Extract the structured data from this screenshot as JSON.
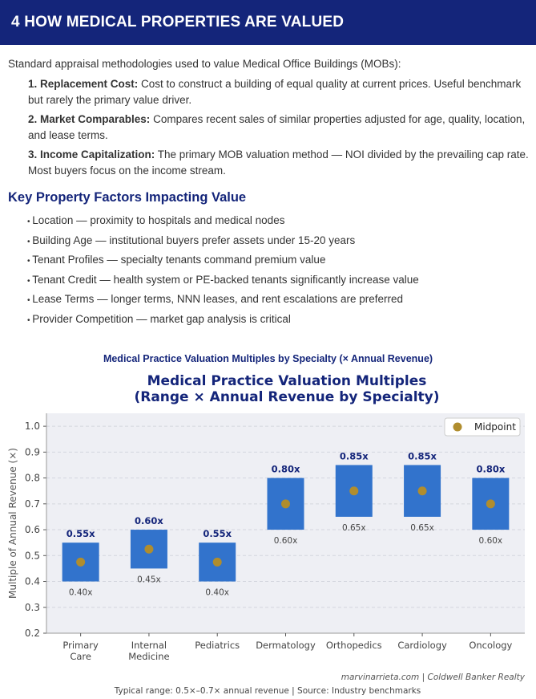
{
  "header": {
    "title": "4 HOW MEDICAL PROPERTIES ARE VALUED"
  },
  "intro": "Standard appraisal methodologies used to value Medical Office Buildings (MOBs):",
  "methods": [
    {
      "label": "1. Replacement Cost:",
      "text": " Cost to construct a building of equal quality at current prices. Useful benchmark but rarely the primary value driver."
    },
    {
      "label": "2. Market Comparables:",
      "text": " Compares recent sales of similar properties adjusted for age, quality, location, and lease terms."
    },
    {
      "label": "3. Income Capitalization:",
      "text": " The primary MOB valuation method — NOI divided by the prevailing cap rate. Most buyers focus on the income stream."
    }
  ],
  "factors_heading": "Key Property Factors Impacting Value",
  "factors": [
    "Location — proximity to hospitals and medical nodes",
    "Building Age — institutional buyers prefer assets under 15-20 years",
    "Tenant Profiles — specialty tenants command premium value",
    "Tenant Credit — health system or PE-backed tenants significantly increase value",
    "Lease Terms — longer terms, NNN leases, and rent escalations are preferred",
    "Provider Competition — market gap analysis is critical"
  ],
  "chart_caption": "Medical Practice Valuation Multiples by Specialty (× Annual Revenue)",
  "chart_data": {
    "type": "bar",
    "title": [
      "Medical Practice Valuation Multiples",
      "(Range × Annual Revenue by Specialty)"
    ],
    "ylabel": "Multiple of Annual Revenue (×)",
    "xlabel": "",
    "ylim": [
      0.2,
      1.05
    ],
    "yticks": [
      0.2,
      0.3,
      0.4,
      0.5,
      0.6,
      0.7,
      0.8,
      0.9,
      1.0
    ],
    "ytick_labels": [
      "0.2",
      "0.3",
      "0.4",
      "0.5",
      "0.6",
      "0.7",
      "0.8",
      "0.9",
      "1.0"
    ],
    "grid": true,
    "legend": {
      "position": "top-right",
      "entries": [
        "Midpoint"
      ]
    },
    "categories": [
      [
        "Primary",
        "Care"
      ],
      [
        "Internal",
        "Medicine"
      ],
      [
        "Pediatrics"
      ],
      [
        "Dermatology"
      ],
      [
        "Orthopedics"
      ],
      [
        "Cardiology"
      ],
      [
        "Oncology"
      ]
    ],
    "low": [
      0.4,
      0.45,
      0.4,
      0.6,
      0.65,
      0.65,
      0.6
    ],
    "high": [
      0.55,
      0.6,
      0.55,
      0.8,
      0.85,
      0.85,
      0.8
    ],
    "midpoint": [
      0.475,
      0.525,
      0.475,
      0.7,
      0.75,
      0.75,
      0.7
    ],
    "low_labels": [
      "0.40x",
      "0.45x",
      "0.40x",
      "0.60x",
      "0.65x",
      "0.65x",
      "0.60x"
    ],
    "high_labels": [
      "0.55x",
      "0.60x",
      "0.55x",
      "0.80x",
      "0.85x",
      "0.85x",
      "0.80x"
    ],
    "credit": "marvinarrieta.com | Coldwell Banker Realty",
    "footnote": "Typical range: 0.5×–0.7× annual revenue | Source: Industry benchmarks",
    "colors": {
      "bar": "#3273cc",
      "midpoint": "#b08d2e",
      "title": "#14257a",
      "plot_bg": "#eeeff4"
    }
  }
}
